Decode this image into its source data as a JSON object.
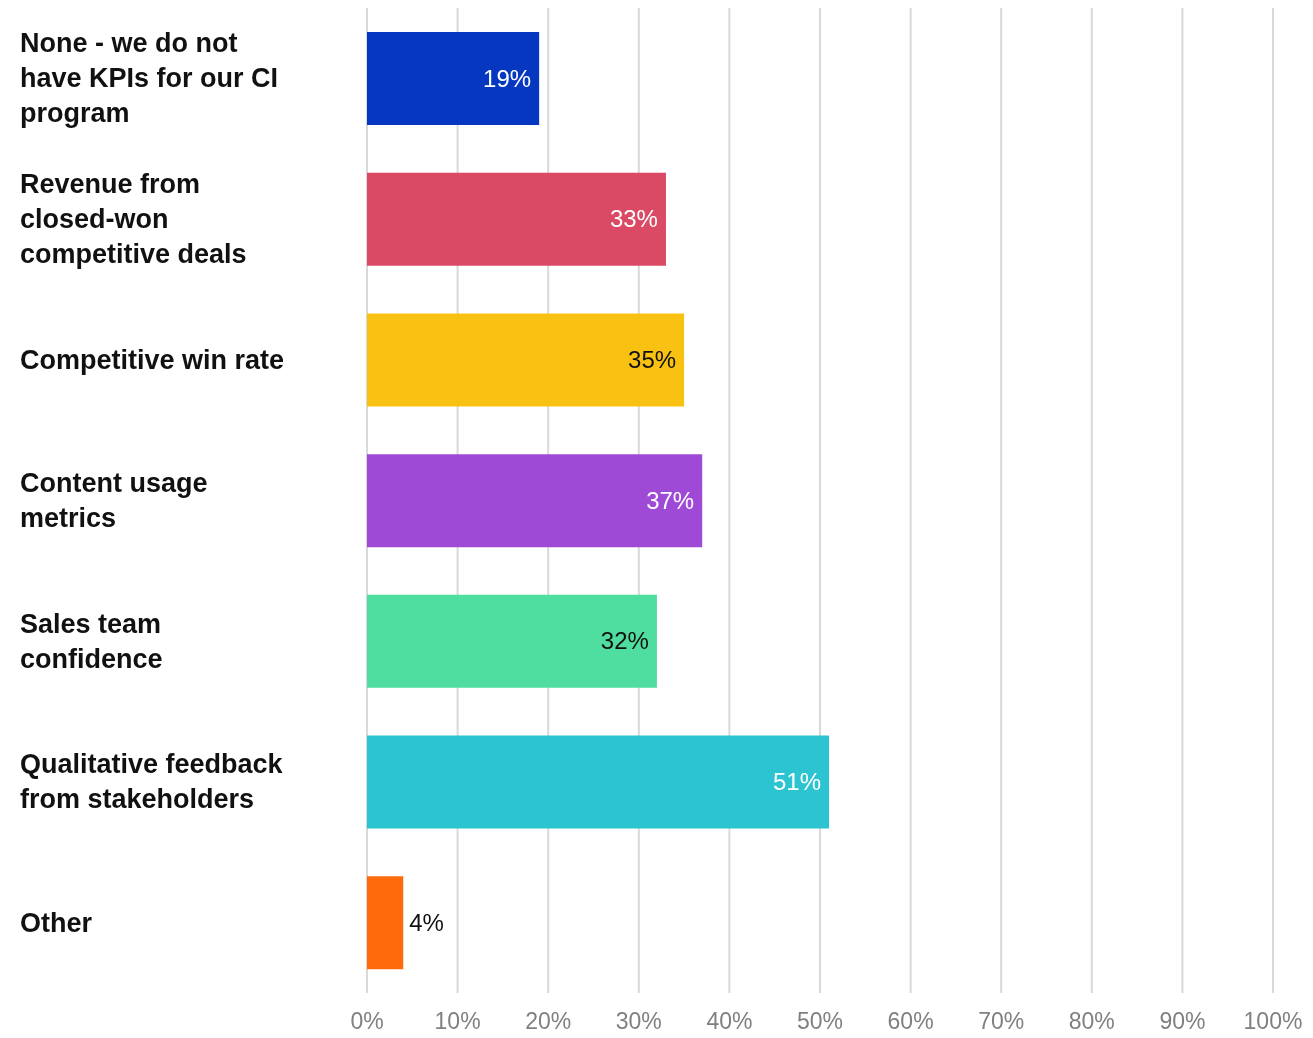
{
  "chart_data": {
    "type": "bar",
    "orientation": "horizontal",
    "categories": [
      "None - we do not have KPIs for our CI program",
      "Revenue from closed-won competitive deals",
      "Competitive win rate",
      "Content usage metrics",
      "Sales team confidence",
      "Qualitative feedback from stakeholders",
      "Other"
    ],
    "values": [
      19,
      33,
      35,
      37,
      32,
      51,
      4
    ],
    "colors": [
      "#0537c1",
      "#da4a64",
      "#f9c111",
      "#9f49d7",
      "#4fde9f",
      "#2cc4d1",
      "#ff6b0c"
    ],
    "xlim": [
      0,
      100
    ],
    "xticks": [
      {
        "value": 0,
        "label": "0%"
      },
      {
        "value": 10,
        "label": "10%"
      },
      {
        "value": 20,
        "label": "20%"
      },
      {
        "value": 30,
        "label": "30%"
      },
      {
        "value": 40,
        "label": "40%"
      },
      {
        "value": 50,
        "label": "50%"
      },
      {
        "value": 60,
        "label": "60%"
      },
      {
        "value": 70,
        "label": "70%"
      },
      {
        "value": 80,
        "label": "80%"
      },
      {
        "value": 90,
        "label": "90%"
      },
      {
        "value": 100,
        "label": "100%"
      }
    ],
    "value_labels": [
      "19%",
      "33%",
      "35%",
      "37%",
      "32%",
      "51%",
      "4%"
    ],
    "grid": "x",
    "legend": false
  }
}
